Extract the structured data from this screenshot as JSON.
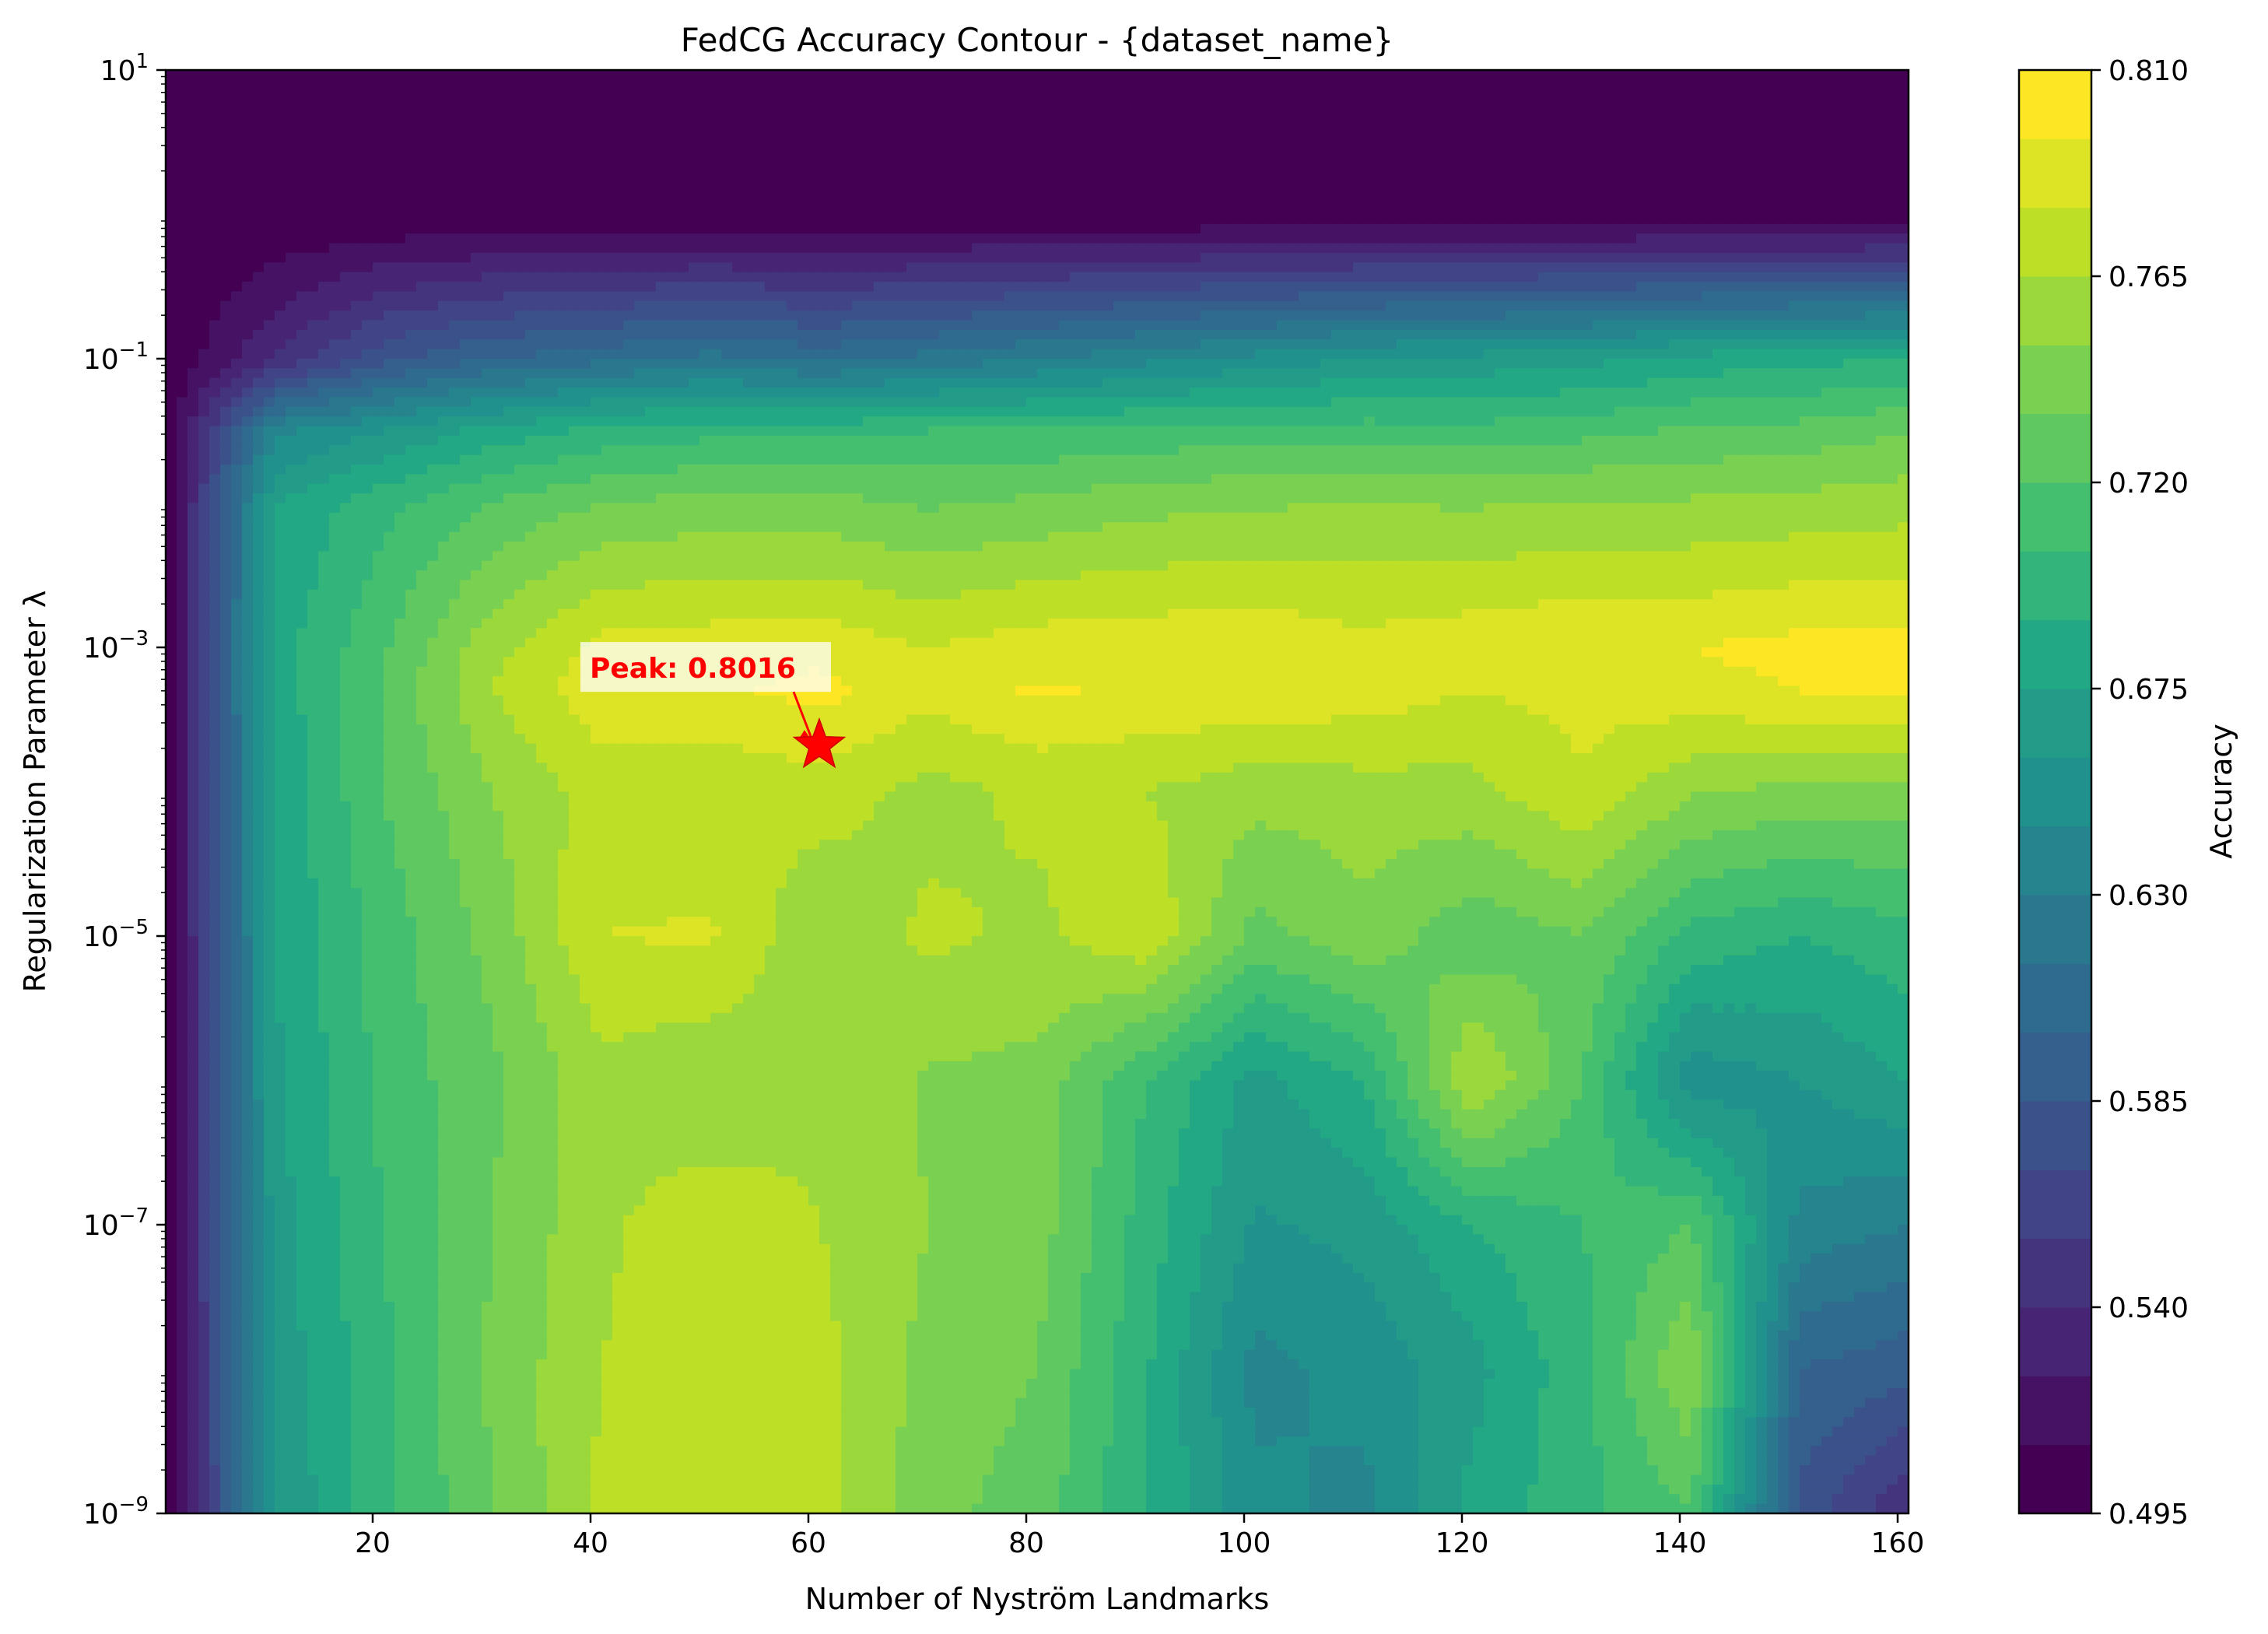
{
  "chart_data": {
    "type": "contour",
    "title": "FedCG Accuracy Contour  - {dataset_name}",
    "xlabel": "Number of Nyström Landmarks",
    "ylabel": "Regularization Parameter λ",
    "colorbar_label": "Accuracy",
    "xlim": [
      1,
      161
    ],
    "ylim_log10": [
      -9,
      1
    ],
    "x_scale": "linear",
    "y_scale": "log",
    "x_ticks": [
      20,
      40,
      60,
      80,
      100,
      120,
      140,
      160
    ],
    "x_tick_labels": [
      "20",
      "40",
      "60",
      "80",
      "100",
      "120",
      "140",
      "160"
    ],
    "y_tick_exponents": [
      1,
      -1,
      -3,
      -5,
      -7,
      -9
    ],
    "y_tick_base": "10",
    "colorbar_ticks": [
      0.495,
      0.54,
      0.585,
      0.63,
      0.675,
      0.72,
      0.765,
      0.81
    ],
    "colorbar_tick_labels": [
      "0.495",
      "0.540",
      "0.585",
      "0.630",
      "0.675",
      "0.720",
      "0.765",
      "0.810"
    ],
    "levels": [
      0.495,
      0.51,
      0.525,
      0.54,
      0.555,
      0.57,
      0.585,
      0.6,
      0.615,
      0.63,
      0.645,
      0.66,
      0.675,
      0.69,
      0.705,
      0.72,
      0.735,
      0.75,
      0.765,
      0.78,
      0.795,
      0.81
    ],
    "colormap": "viridis",
    "x": [
      1,
      11,
      21,
      31,
      41,
      51,
      61,
      71,
      81,
      91,
      101,
      111,
      121,
      131,
      141,
      151,
      161
    ],
    "y_log10": [
      -9,
      -8,
      -7,
      -6,
      -5,
      -4,
      -3.3,
      -3,
      -2,
      -1.5,
      -1,
      0,
      1
    ],
    "z": [
      [
        0.495,
        0.66,
        0.7,
        0.735,
        0.768,
        0.775,
        0.772,
        0.74,
        0.728,
        0.69,
        0.65,
        0.64,
        0.68,
        0.7,
        0.72,
        0.58,
        0.54
      ],
      [
        0.495,
        0.665,
        0.702,
        0.738,
        0.765,
        0.778,
        0.77,
        0.745,
        0.735,
        0.692,
        0.64,
        0.65,
        0.67,
        0.7,
        0.75,
        0.6,
        0.59
      ],
      [
        0.495,
        0.668,
        0.705,
        0.735,
        0.762,
        0.775,
        0.765,
        0.75,
        0.742,
        0.698,
        0.658,
        0.665,
        0.69,
        0.705,
        0.72,
        0.64,
        0.63
      ],
      [
        0.495,
        0.672,
        0.71,
        0.732,
        0.76,
        0.752,
        0.762,
        0.748,
        0.745,
        0.705,
        0.67,
        0.69,
        0.768,
        0.72,
        0.65,
        0.66,
        0.675
      ],
      [
        0.495,
        0.675,
        0.712,
        0.74,
        0.78,
        0.782,
        0.752,
        0.768,
        0.762,
        0.778,
        0.73,
        0.745,
        0.725,
        0.735,
        0.7,
        0.69,
        0.7
      ],
      [
        0.495,
        0.678,
        0.72,
        0.75,
        0.772,
        0.768,
        0.772,
        0.76,
        0.768,
        0.765,
        0.755,
        0.758,
        0.76,
        0.778,
        0.752,
        0.745,
        0.745
      ],
      [
        0.495,
        0.68,
        0.722,
        0.765,
        0.79,
        0.792,
        0.8,
        0.785,
        0.797,
        0.792,
        0.792,
        0.788,
        0.78,
        0.785,
        0.79,
        0.795,
        0.797
      ],
      [
        0.495,
        0.682,
        0.718,
        0.76,
        0.785,
        0.788,
        0.79,
        0.78,
        0.788,
        0.79,
        0.792,
        0.785,
        0.79,
        0.795,
        0.795,
        0.8,
        0.802
      ],
      [
        0.495,
        0.675,
        0.7,
        0.722,
        0.735,
        0.74,
        0.74,
        0.733,
        0.738,
        0.745,
        0.748,
        0.75,
        0.748,
        0.752,
        0.752,
        0.755,
        0.758
      ],
      [
        0.495,
        0.64,
        0.66,
        0.68,
        0.695,
        0.7,
        0.7,
        0.705,
        0.706,
        0.71,
        0.712,
        0.712,
        0.71,
        0.715,
        0.722,
        0.725,
        0.735
      ],
      [
        0.495,
        0.54,
        0.58,
        0.6,
        0.61,
        0.62,
        0.61,
        0.62,
        0.63,
        0.64,
        0.65,
        0.66,
        0.665,
        0.67,
        0.68,
        0.685,
        0.69
      ],
      [
        0.495,
        0.495,
        0.495,
        0.495,
        0.495,
        0.495,
        0.495,
        0.495,
        0.495,
        0.495,
        0.495,
        0.495,
        0.495,
        0.495,
        0.495,
        0.495,
        0.495
      ],
      [
        0.495,
        0.495,
        0.495,
        0.495,
        0.495,
        0.495,
        0.495,
        0.495,
        0.495,
        0.495,
        0.495,
        0.495,
        0.495,
        0.495,
        0.495,
        0.495,
        0.495
      ]
    ],
    "annotation": {
      "text": "Peak: 0.8016",
      "x": 61,
      "y_log10": -3.68,
      "color": "#ff0000",
      "marker": "star"
    },
    "grid": false,
    "legend": "none"
  }
}
